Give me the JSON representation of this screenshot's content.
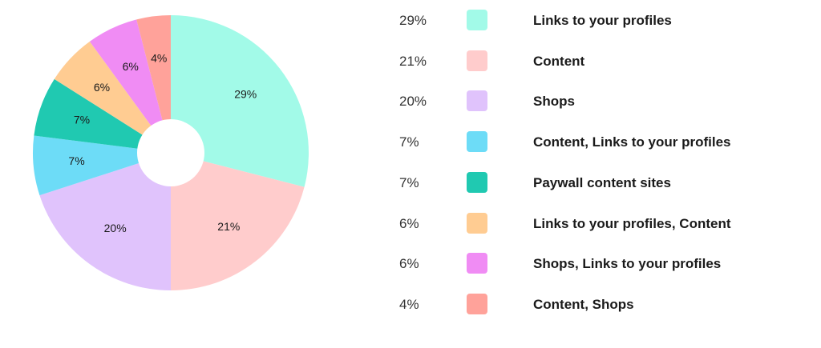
{
  "chart_data": {
    "type": "pie",
    "donut": true,
    "title": "",
    "legend_position": "right",
    "slices": [
      {
        "value": 29,
        "label": "29%",
        "legend_label": "Links to your profiles",
        "color": "#A2FAE8"
      },
      {
        "value": 21,
        "label": "21%",
        "legend_label": "Content",
        "color": "#FFCCCC"
      },
      {
        "value": 20,
        "label": "20%",
        "legend_label": "Shops",
        "color": "#E0C3FC"
      },
      {
        "value": 7,
        "label": "7%",
        "legend_label": "Content, Links to your profiles",
        "color": "#6DDCF7"
      },
      {
        "value": 7,
        "label": "7%",
        "legend_label": "Paywall content sites",
        "color": "#20C9B1"
      },
      {
        "value": 6,
        "label": "6%",
        "legend_label": "Links to your profiles, Content",
        "color": "#FFCC92"
      },
      {
        "value": 6,
        "label": "6%",
        "legend_label": "Shops, Links to your profiles",
        "color": "#F08CF4"
      },
      {
        "value": 4,
        "label": "4%",
        "legend_label": "Content, Shops",
        "color": "#FFA29A"
      }
    ]
  }
}
